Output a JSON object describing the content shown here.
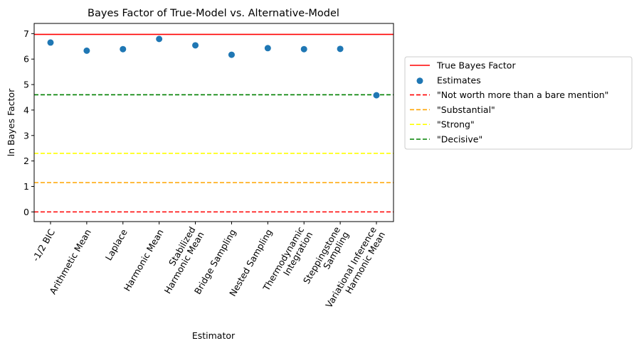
{
  "chart_data": {
    "type": "scatter",
    "title": "Bayes Factor of True-Model vs. Alternative-Model",
    "xlabel": "Estimator",
    "ylabel": "ln Bayes Factor",
    "ylim": [
      -0.38,
      7.4
    ],
    "yticks": [
      0,
      1,
      2,
      3,
      4,
      5,
      6,
      7
    ],
    "categories": [
      "-1/2 BIC",
      "Arithmetic Mean",
      "Laplace",
      "Harmonic Mean",
      "Stabilized\nHarmonic Mean",
      "Bridge Sampling",
      "Nested Sampling",
      "Thermodynamic\nIntegration",
      "Steppingstone\nSampling",
      "Variational Inference\nHarmonic Mean"
    ],
    "series": [
      {
        "name": "Estimates",
        "color": "#1f77b4",
        "values": [
          6.65,
          6.33,
          6.39,
          6.79,
          6.54,
          6.17,
          6.43,
          6.39,
          6.4,
          4.58
        ]
      }
    ],
    "reference_lines": [
      {
        "name": "True Bayes Factor",
        "value": 6.97,
        "color": "#ff0000",
        "dash": "solid"
      },
      {
        "name": "\"Not worth more than a bare mention\"",
        "value": 0,
        "color": "#ff0000",
        "dash": "dashed"
      },
      {
        "name": "\"Substantial\"",
        "value": 1.15,
        "color": "#ffa500",
        "dash": "dashed"
      },
      {
        "name": "\"Strong\"",
        "value": 2.3,
        "color": "#ffff00",
        "dash": "dashed"
      },
      {
        "name": "\"Decisive\"",
        "value": 4.6,
        "color": "#008000",
        "dash": "dashed"
      }
    ],
    "legend_position": "outside-right",
    "grid": false
  }
}
